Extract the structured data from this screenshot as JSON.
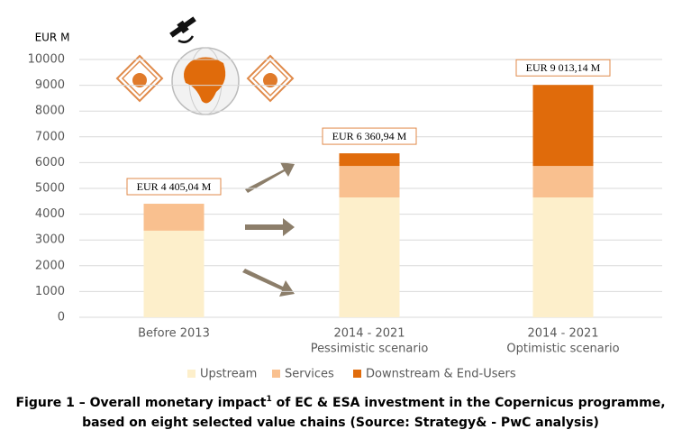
{
  "chart_data": {
    "type": "stacked_bar",
    "y_label": "EUR M",
    "categories": [
      [
        "Before 2013"
      ],
      [
        "2014 - 2021",
        "Pessimistic scenario"
      ],
      [
        "2014 - 2021",
        "Optimistic scenario"
      ]
    ],
    "series": [
      {
        "name": "Upstream",
        "color": "#fdefcb",
        "values": [
          3360,
          4650,
          4650
        ]
      },
      {
        "name": "Services",
        "color": "#f9c08f",
        "values": [
          1045,
          1220,
          1220
        ]
      },
      {
        "name": "Downstream & End-Users",
        "color": "#e06b0b",
        "values": [
          0,
          491,
          3143
        ]
      }
    ],
    "annotations": [
      "EUR 4 405,04 M",
      "EUR 6 360,94 M",
      "EUR 9 013,14 M"
    ],
    "ylim": [
      0,
      10000
    ],
    "yticks": [
      0,
      1000,
      2000,
      3000,
      4000,
      5000,
      6000,
      7000,
      8000,
      9000,
      10000
    ],
    "grid": true,
    "title": "Figure 1 – Overall monetary impact",
    "title_footnote": "1",
    "title_rest": " of EC & ESA investment in the Copernicus programme,",
    "title_line2": "based on eight selected value chains (Source: Strategy& - PwC analysis)"
  }
}
